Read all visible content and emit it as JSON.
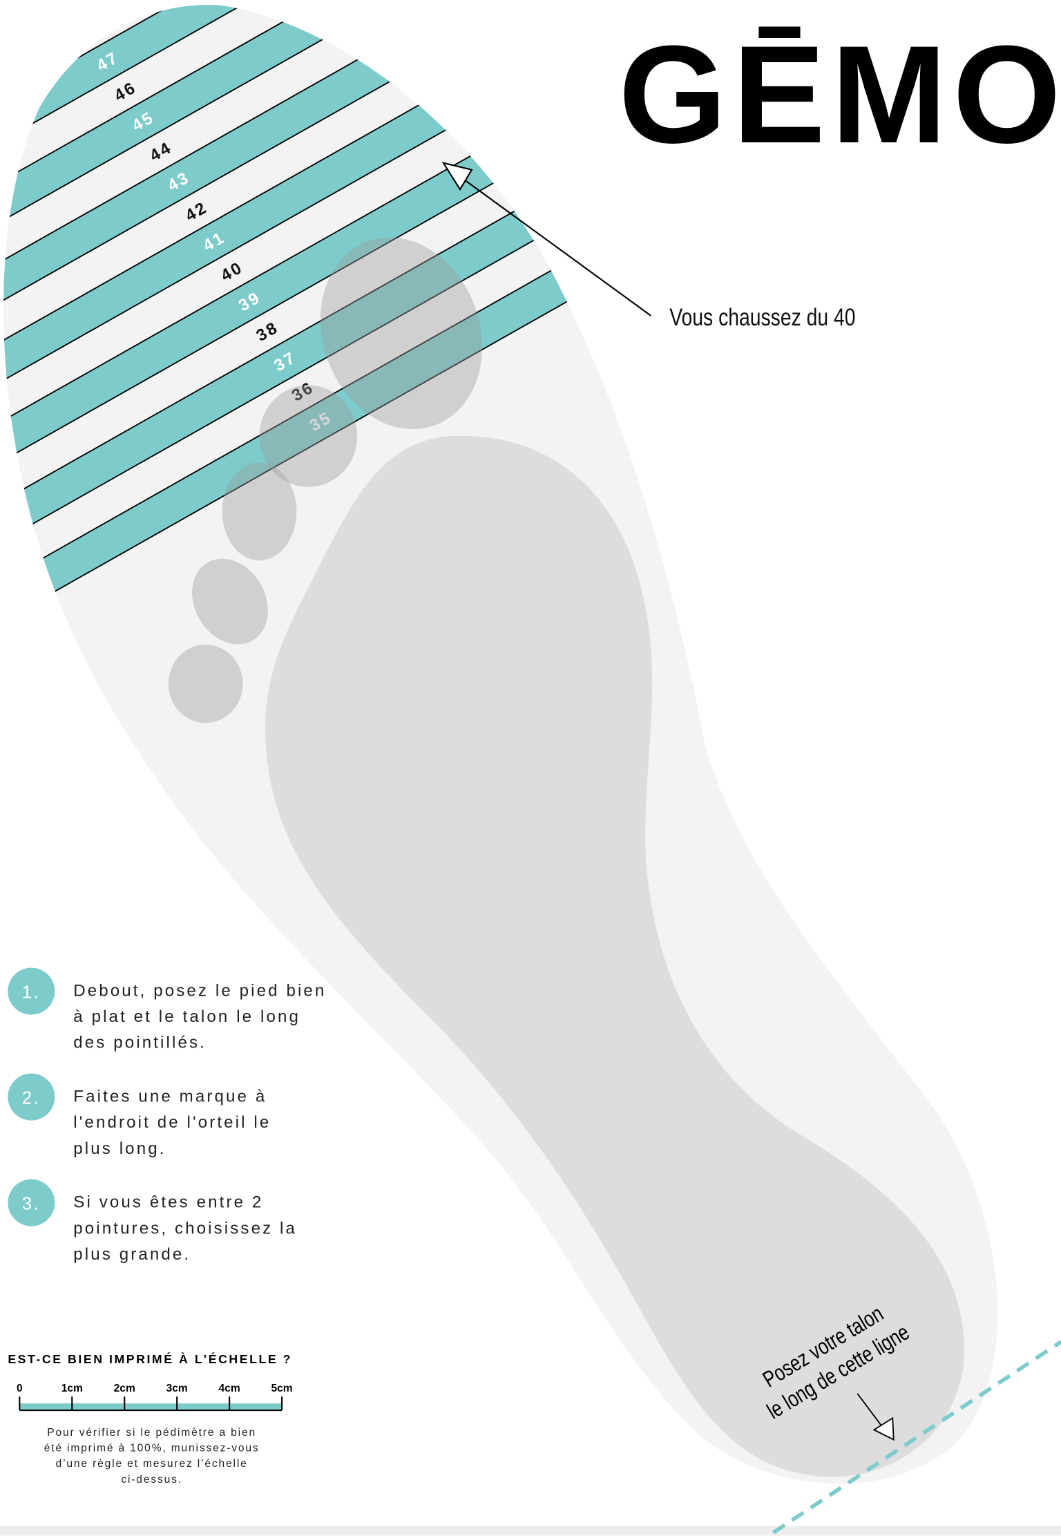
{
  "logo": "GĒMO",
  "size_bands": [
    "47",
    "46",
    "45",
    "44",
    "43",
    "42",
    "41",
    "40",
    "39",
    "38",
    "37",
    "36",
    "35"
  ],
  "annotation": "Vous chaussez du 40",
  "heel_instruction": [
    "Posez votre talon",
    "le long de cette ligne"
  ],
  "steps": [
    {
      "number": "1.",
      "lines": [
        "Debout, posez le pied bien",
        "à plat et le talon le long",
        "des pointillés."
      ]
    },
    {
      "number": "2.",
      "lines": [
        "Faites une marque à",
        "l'endroit de l'orteil le",
        "plus long."
      ]
    },
    {
      "number": "3.",
      "lines": [
        "Si vous êtes entre 2",
        "pointures, choisissez la",
        "plus grande."
      ]
    }
  ],
  "scale": {
    "title": "EST-CE BIEN IMPRIMÉ À L’ÉCHELLE ?",
    "labels": [
      "0",
      "1cm",
      "2cm",
      "3cm",
      "4cm",
      "5cm"
    ],
    "note": [
      "Pour vérifier si le pédimètre a bien",
      "été imprimé à 100%, munissez-vous",
      "d’une règle et mesurez l’échelle",
      "ci-dessus."
    ]
  }
}
